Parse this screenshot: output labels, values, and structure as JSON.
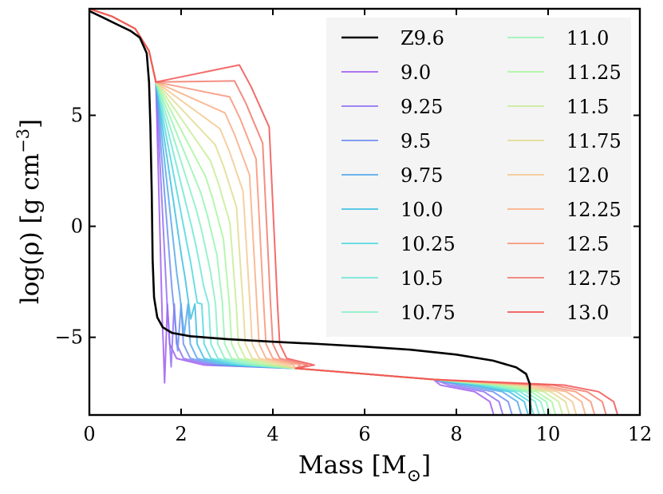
{
  "chart_data": {
    "type": "line",
    "title": "",
    "xlabel": "Mass [M",
    "xlabel_sub": "⊙",
    "xlabel_end": "]",
    "ylabel": "log(ρ) [g cm",
    "ylabel_sup": "−3",
    "ylabel_end": "]",
    "xlim": [
      0,
      12
    ],
    "ylim": [
      -8.5,
      9.8
    ],
    "xticks": [
      0,
      2,
      4,
      6,
      8,
      10,
      12
    ],
    "xtick_labels": [
      "0",
      "2",
      "4",
      "6",
      "8",
      "10",
      "12"
    ],
    "yticks": [
      -5,
      0,
      5
    ],
    "ytick_labels": [
      "−5",
      "0",
      "5"
    ],
    "grid": false,
    "legend_position": "top-right",
    "legend_columns": 2,
    "series": [
      {
        "name": "Z9.6",
        "color": "#000000",
        "width": 2.6,
        "points": [
          [
            0,
            9.7
          ],
          [
            0.3,
            9.4
          ],
          [
            0.6,
            9.1
          ],
          [
            0.9,
            8.8
          ],
          [
            1.1,
            8.5
          ],
          [
            1.25,
            7.8
          ],
          [
            1.3,
            6.5
          ],
          [
            1.33,
            4.5
          ],
          [
            1.36,
            1.5
          ],
          [
            1.38,
            -1.5
          ],
          [
            1.41,
            -3.2
          ],
          [
            1.48,
            -4.1
          ],
          [
            1.6,
            -4.55
          ],
          [
            1.8,
            -4.8
          ],
          [
            2.2,
            -4.95
          ],
          [
            3,
            -5.08
          ],
          [
            4,
            -5.2
          ],
          [
            5,
            -5.3
          ],
          [
            6,
            -5.42
          ],
          [
            7,
            -5.56
          ],
          [
            8,
            -5.78
          ],
          [
            8.8,
            -6.05
          ],
          [
            9.3,
            -6.35
          ],
          [
            9.52,
            -6.65
          ],
          [
            9.6,
            -7.1
          ],
          [
            9.61,
            -8.6
          ]
        ]
      },
      {
        "name": "9.0",
        "color": "#9f5df0",
        "width": 2,
        "mid": -6.05,
        "dm": 0.2,
        "outer": 8.85
      },
      {
        "name": "9.25",
        "color": "#8f70f5",
        "width": 2,
        "mid": -5.33,
        "dm": 0.35,
        "outer": 9.05
      },
      {
        "name": "9.5",
        "color": "#6d8ef0",
        "width": 2,
        "mid": -4.61,
        "dm": 0.5,
        "outer": 9.25
      },
      {
        "name": "9.75",
        "color": "#55a8ea",
        "width": 2,
        "mid": -3.89,
        "dm": 0.65,
        "outer": 9.45
      },
      {
        "name": "10.0",
        "color": "#3fc0e2",
        "width": 2,
        "mid": -3.17,
        "dm": 0.8,
        "outer": 9.6
      },
      {
        "name": "10.25",
        "color": "#50d8e0",
        "width": 2,
        "mid": -2.45,
        "dm": 0.95,
        "outer": 9.72
      },
      {
        "name": "10.5",
        "color": "#6ee6d6",
        "width": 2,
        "mid": -1.73,
        "dm": 1.1,
        "outer": 9.84
      },
      {
        "name": "10.75",
        "color": "#88f0c4",
        "width": 2,
        "mid": -1.01,
        "dm": 1.25,
        "outer": 9.96
      },
      {
        "name": "11.0",
        "color": "#98f4b2",
        "width": 2,
        "mid": -0.29,
        "dm": 1.4,
        "outer": 10.08
      },
      {
        "name": "11.25",
        "color": "#aaf4a0",
        "width": 2,
        "mid": 0.43,
        "dm": 1.55,
        "outer": 10.2
      },
      {
        "name": "11.5",
        "color": "#c8ec96",
        "width": 2,
        "mid": 1.15,
        "dm": 1.7,
        "outer": 10.35
      },
      {
        "name": "11.75",
        "color": "#e0dc92",
        "width": 2,
        "mid": 1.87,
        "dm": 1.85,
        "outer": 10.5
      },
      {
        "name": "12.0",
        "color": "#f4c890",
        "width": 2,
        "mid": 2.59,
        "dm": 2.0,
        "outer": 10.65
      },
      {
        "name": "12.25",
        "color": "#f8ae84",
        "width": 2,
        "mid": 3.31,
        "dm": 2.15,
        "outer": 10.85
      },
      {
        "name": "12.5",
        "color": "#f89478",
        "width": 2,
        "mid": 4.03,
        "dm": 2.3,
        "outer": 11.05
      },
      {
        "name": "12.75",
        "color": "#f07a6c",
        "width": 2,
        "mid": 4.75,
        "dm": 2.45,
        "outer": 11.3
      },
      {
        "name": "13.0",
        "color": "#f25252",
        "width": 2,
        "mid": 5.47,
        "dm": 2.6,
        "outer": 11.55
      }
    ]
  }
}
